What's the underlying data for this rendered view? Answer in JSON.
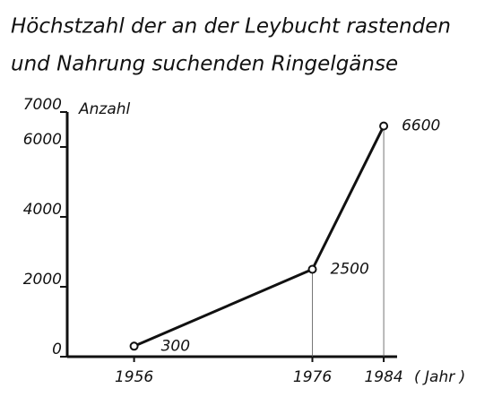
{
  "chart_data": {
    "type": "line",
    "title": "Höchstzahl der an der Leybucht rastenden",
    "subtitle": "und Nahrung suchenden Ringelgänse",
    "y_label": "Anzahl",
    "x_label": "( Jahr )",
    "x": [
      1956,
      1976,
      1984
    ],
    "values": [
      300,
      2500,
      6600
    ],
    "color": "#111111",
    "xlim": [
      1948.5,
      1985.5
    ],
    "xticks": [
      1956,
      1976,
      1984
    ],
    "ylim": [
      0,
      7000
    ],
    "yticks": [
      0,
      2000,
      4000,
      6000,
      7000
    ],
    "data_labels": true,
    "drop_lines": true
  }
}
